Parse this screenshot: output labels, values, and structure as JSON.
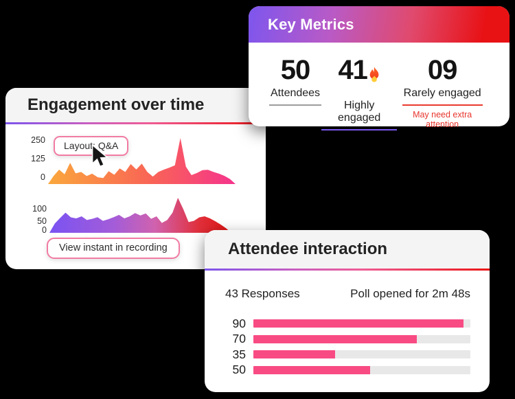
{
  "page": {
    "background": "#000000"
  },
  "key_metrics": {
    "title": "Key Metrics",
    "metrics": [
      {
        "value": "50",
        "label": "Attendees",
        "underline": "#9c9c9c",
        "note": ""
      },
      {
        "value": "41",
        "label": "Highly engaged",
        "underline": "#7a5af0",
        "note": "",
        "icon": "flame"
      },
      {
        "value": "09",
        "label": "Rarely engaged",
        "underline": "#ea3a2d",
        "note": "May need extra attention"
      }
    ]
  },
  "engagement": {
    "title": "Engagement over time",
    "layout_chip": "Layout: Q&A",
    "recording_chip": "View instant in recording",
    "chart1_ticks": [
      "250",
      "125",
      "0"
    ],
    "chart2_ticks": [
      "100",
      "50",
      "0"
    ]
  },
  "attendee_interaction": {
    "title": "Attendee interaction",
    "responses_label": "43 Responses",
    "poll_label": "Poll opened for 2m 48s",
    "bars": [
      {
        "label": "90",
        "value": 90
      },
      {
        "label": "70",
        "value": 70
      },
      {
        "label": "35",
        "value": 35
      },
      {
        "label": "50",
        "value": 50
      }
    ],
    "bar_scale_max": 93
  },
  "chart_data": [
    {
      "type": "area",
      "title": "Engagement over time (upper chart)",
      "yticks": [
        250,
        125,
        0
      ],
      "ymax_display": 262,
      "values": [
        0,
        45,
        81,
        55,
        119,
        60,
        68,
        45,
        58,
        38,
        34,
        72,
        52,
        88,
        68,
        112,
        82,
        115,
        68,
        42,
        68,
        81,
        92,
        105,
        258,
        98,
        50,
        62,
        78,
        80,
        68,
        58,
        46,
        28,
        0
      ],
      "gradient": [
        "#faa73c",
        "#f96456",
        "#f5348d"
      ]
    },
    {
      "type": "area",
      "title": "Engagement over time (lower chart)",
      "yticks": [
        100,
        50,
        0
      ],
      "ymax_display": 200,
      "values": [
        0,
        45,
        72,
        98,
        75,
        70,
        80,
        62,
        68,
        76,
        58,
        66,
        76,
        87,
        70,
        80,
        96,
        84,
        94,
        68,
        80,
        48,
        62,
        98,
        170,
        115,
        52,
        58,
        75,
        80,
        70,
        56,
        40,
        22,
        0
      ],
      "gradient": [
        "#7a53f2",
        "#a35cd9",
        "#d062ae",
        "#e01412"
      ]
    },
    {
      "type": "bar",
      "title": "Attendee interaction poll responses",
      "orientation": "horizontal",
      "labels": [
        "90",
        "70",
        "35",
        "50"
      ],
      "values": [
        90,
        70,
        35,
        50
      ],
      "xmax": 93,
      "bar_color": "#f84b84",
      "track_color": "#e9e8e8"
    }
  ]
}
